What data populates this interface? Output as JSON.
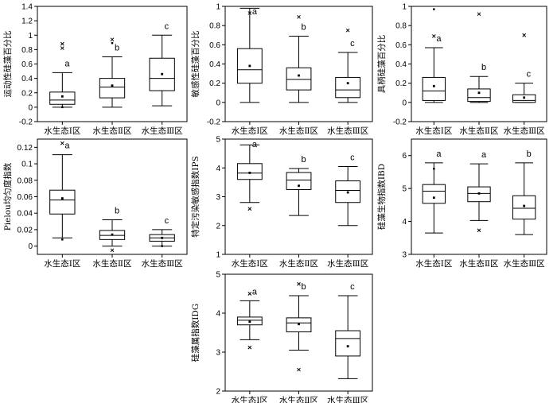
{
  "chart_data": [
    {
      "type": "box",
      "ylabel": "运动性硅藻百分比",
      "ylim": [
        -0.2,
        1.4
      ],
      "yticks": [
        -0.2,
        0,
        0.2,
        0.4,
        0.6,
        0.8,
        1.0,
        1.2,
        1.4
      ],
      "categories": [
        "水生态Ⅰ区",
        "水生态Ⅱ区",
        "水生态Ⅲ区"
      ],
      "boxes": [
        {
          "min": 0.0,
          "q1": 0.04,
          "median": 0.1,
          "q3": 0.21,
          "max": 0.48,
          "mean": 0.15,
          "outliers": [
            0.0
          ],
          "extremes": [
            0.82,
            0.88
          ]
        },
        {
          "min": 0.0,
          "q1": 0.13,
          "median": 0.28,
          "q3": 0.4,
          "max": 0.7,
          "mean": 0.3,
          "outliers": [
            0.89
          ],
          "extremes": [
            0.94
          ]
        },
        {
          "min": 0.02,
          "q1": 0.23,
          "median": 0.4,
          "q3": 0.68,
          "max": 1.0,
          "mean": 0.46,
          "outliers": [],
          "extremes": []
        }
      ],
      "letters": [
        "a",
        "b",
        "c"
      ]
    },
    {
      "type": "box",
      "ylabel": "敏感性硅藻百分比",
      "ylim": [
        -0.2,
        1.0
      ],
      "yticks": [
        -0.2,
        0.0,
        0.2,
        0.4,
        0.6,
        0.8,
        1.0
      ],
      "categories": [
        "水生态Ⅰ区",
        "水生态Ⅱ区",
        "水生态Ⅲ区"
      ],
      "boxes": [
        {
          "min": 0.0,
          "q1": 0.2,
          "median": 0.34,
          "q3": 0.56,
          "max": 0.98,
          "mean": 0.38,
          "outliers": [],
          "extremes": [
            0.93
          ]
        },
        {
          "min": 0.0,
          "q1": 0.13,
          "median": 0.24,
          "q3": 0.36,
          "max": 0.69,
          "mean": 0.28,
          "outliers": [],
          "extremes": [
            0.89
          ]
        },
        {
          "min": 0.0,
          "q1": 0.05,
          "median": 0.13,
          "q3": 0.26,
          "max": 0.52,
          "mean": 0.2,
          "outliers": [],
          "extremes": [
            0.75
          ]
        }
      ],
      "letters": [
        "a",
        "b",
        "c"
      ]
    },
    {
      "type": "box",
      "ylabel": "具柄硅藻百分比",
      "ylim": [
        -0.2,
        1.0
      ],
      "yticks": [
        -0.2,
        0.0,
        0.2,
        0.4,
        0.6,
        0.8,
        1.0
      ],
      "categories": [
        "水生态Ⅰ区",
        "水生态Ⅱ区",
        "水生态Ⅲ区"
      ],
      "boxes": [
        {
          "min": 0.0,
          "q1": 0.02,
          "median": 0.12,
          "q3": 0.26,
          "max": 0.57,
          "mean": 0.17,
          "outliers": [
            0.97
          ],
          "extremes": [
            0.69
          ]
        },
        {
          "min": 0.0,
          "q1": 0.01,
          "median": 0.05,
          "q3": 0.14,
          "max": 0.27,
          "mean": 0.1,
          "outliers": [],
          "extremes": [
            0.92
          ]
        },
        {
          "min": 0.0,
          "q1": 0.0,
          "median": 0.02,
          "q3": 0.08,
          "max": 0.2,
          "mean": 0.05,
          "outliers": [],
          "extremes": [
            0.7
          ]
        }
      ],
      "letters": [
        "a",
        "b",
        "c"
      ]
    },
    {
      "type": "box",
      "ylabel": "Pielou均匀度指数",
      "ylim": [
        -0.01,
        0.13
      ],
      "yticks": [
        0,
        0.02,
        0.04,
        0.06,
        0.08,
        0.1,
        0.12
      ],
      "categories": [
        "水生态Ⅰ区",
        "水生态Ⅱ区",
        "水生态Ⅲ区"
      ],
      "boxes": [
        {
          "min": 0.01,
          "q1": 0.039,
          "median": 0.056,
          "q3": 0.068,
          "max": 0.111,
          "mean": 0.058,
          "outliers": [
            0.008
          ],
          "extremes": [
            0.125
          ]
        },
        {
          "min": 0.0,
          "q1": 0.008,
          "median": 0.013,
          "q3": 0.019,
          "max": 0.032,
          "mean": 0.014,
          "outliers": [],
          "extremes": [
            -0.005
          ]
        },
        {
          "min": 0.0,
          "q1": 0.006,
          "median": 0.01,
          "q3": 0.014,
          "max": 0.02,
          "mean": 0.01,
          "outliers": [
            0.0
          ],
          "extremes": []
        }
      ],
      "letters": [
        "a",
        "b",
        "c"
      ]
    },
    {
      "type": "box",
      "ylabel": "特定污染敏感指数IPS",
      "ylim": [
        1,
        5
      ],
      "yticks": [
        1,
        2,
        3,
        4,
        5
      ],
      "categories": [
        "水生态Ⅰ区",
        "水生态Ⅱ区",
        "水生态Ⅲ区"
      ],
      "boxes": [
        {
          "min": 2.8,
          "q1": 3.6,
          "median": 3.82,
          "q3": 4.15,
          "max": 4.8,
          "mean": 3.83,
          "outliers": [],
          "extremes": [
            2.58
          ]
        },
        {
          "min": 2.35,
          "q1": 3.25,
          "median": 3.58,
          "q3": 3.84,
          "max": 3.98,
          "mean": 3.38,
          "outliers": [],
          "extremes": []
        },
        {
          "min": 2.0,
          "q1": 2.8,
          "median": 3.22,
          "q3": 3.55,
          "max": 4.05,
          "mean": 3.15,
          "outliers": [],
          "extremes": []
        }
      ],
      "letters": [
        "a",
        "b",
        "c"
      ]
    },
    {
      "type": "box",
      "ylabel": "硅藻生物指数IBD",
      "ylim": [
        3,
        6.5
      ],
      "yticks": [
        3,
        4,
        5,
        6
      ],
      "categories": [
        "水生态Ⅰ区",
        "水生态Ⅱ区",
        "水生态Ⅲ区"
      ],
      "boxes": [
        {
          "min": 3.65,
          "q1": 4.55,
          "median": 4.92,
          "q3": 5.12,
          "max": 5.78,
          "mean": 4.72,
          "outliers": [
            5.6
          ],
          "extremes": []
        },
        {
          "min": 4.03,
          "q1": 4.6,
          "median": 4.85,
          "q3": 5.05,
          "max": 5.75,
          "mean": 4.85,
          "outliers": [],
          "extremes": [
            3.73
          ]
        },
        {
          "min": 3.6,
          "q1": 4.07,
          "median": 4.4,
          "q3": 4.78,
          "max": 5.78,
          "mean": 4.47,
          "outliers": [],
          "extremes": []
        }
      ],
      "letters": [
        "a",
        "a",
        "b"
      ]
    },
    {
      "type": "box",
      "ylabel": "硅藻属指数IDG",
      "ylim": [
        2,
        5
      ],
      "yticks": [
        2,
        3,
        4,
        5
      ],
      "categories": [
        "水生态Ⅰ区",
        "水生态Ⅱ区",
        "水生态Ⅲ区"
      ],
      "boxes": [
        {
          "min": 3.32,
          "q1": 3.7,
          "median": 3.82,
          "q3": 3.9,
          "max": 4.32,
          "mean": 3.78,
          "outliers": [],
          "extremes": [
            3.12,
            4.5
          ]
        },
        {
          "min": 3.05,
          "q1": 3.52,
          "median": 3.75,
          "q3": 3.88,
          "max": 4.45,
          "mean": 3.72,
          "outliers": [],
          "extremes": [
            2.55,
            4.75
          ]
        },
        {
          "min": 2.32,
          "q1": 2.9,
          "median": 3.35,
          "q3": 3.55,
          "max": 4.45,
          "mean": 3.15,
          "outliers": [],
          "extremes": []
        }
      ],
      "letters": [
        "a",
        "b",
        "c"
      ]
    }
  ]
}
